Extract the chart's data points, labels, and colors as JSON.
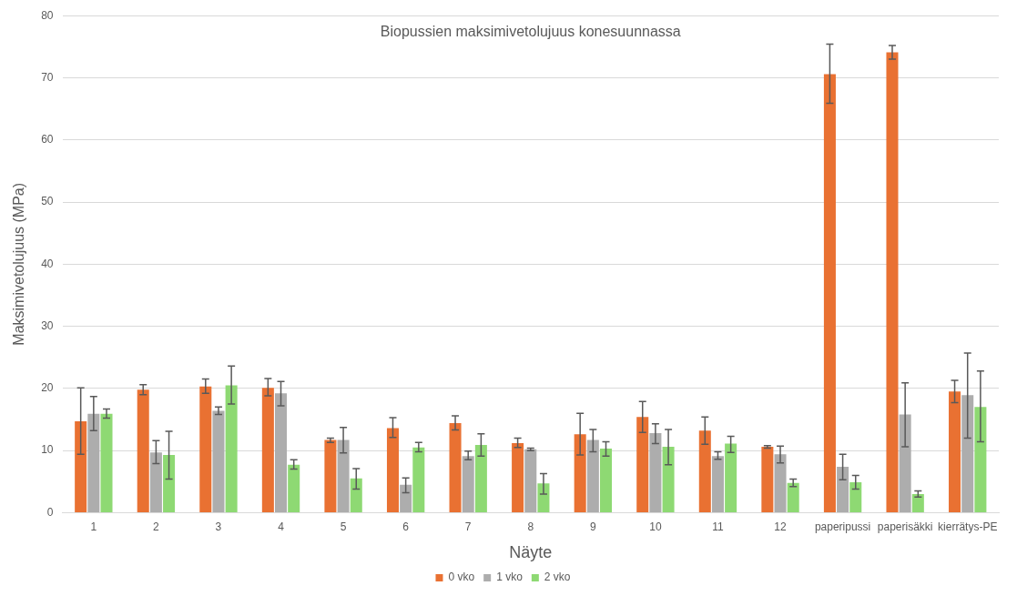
{
  "chart_data": {
    "type": "bar",
    "title": "Biopussien maksimivetolujuus konesuunnassa",
    "xlabel": "Näyte",
    "ylabel": "Maksimivetolujuus (MPa)",
    "categories": [
      "1",
      "2",
      "3",
      "4",
      "5",
      "6",
      "7",
      "8",
      "9",
      "10",
      "11",
      "12",
      "paperipussi",
      "paperisäkki",
      "kierrätys-PE"
    ],
    "series": [
      {
        "name": "0 vko",
        "color": "#e97132",
        "values": [
          14.7,
          19.8,
          20.3,
          20.1,
          11.7,
          13.6,
          14.4,
          11.2,
          12.6,
          15.4,
          13.2,
          10.6,
          70.6,
          74.1,
          19.5
        ],
        "errors": [
          [
            9.4,
            20.1
          ],
          [
            19.0,
            20.6
          ],
          [
            19.2,
            21.5
          ],
          [
            18.8,
            21.6
          ],
          [
            11.3,
            12.0
          ],
          [
            12.1,
            15.3
          ],
          [
            13.3,
            15.6
          ],
          [
            10.5,
            12.0
          ],
          [
            9.3,
            16.0
          ],
          [
            12.9,
            17.9
          ],
          [
            11.0,
            15.4
          ],
          [
            10.4,
            10.8
          ],
          [
            65.9,
            75.4
          ],
          [
            73.0,
            75.2
          ],
          [
            17.7,
            21.3
          ]
        ]
      },
      {
        "name": "1 vko",
        "color": "#adadad",
        "values": [
          15.9,
          9.7,
          16.4,
          19.2,
          11.7,
          4.5,
          9.1,
          10.2,
          11.7,
          12.8,
          9.1,
          9.4,
          7.4,
          15.8,
          18.9
        ],
        "errors": [
          [
            13.2,
            18.7
          ],
          [
            7.9,
            11.6
          ],
          [
            15.8,
            17.0
          ],
          [
            17.2,
            21.1
          ],
          [
            9.6,
            13.7
          ],
          [
            3.2,
            5.6
          ],
          [
            8.5,
            9.9
          ],
          [
            10.0,
            10.4
          ],
          [
            9.8,
            13.4
          ],
          [
            11.1,
            14.3
          ],
          [
            8.6,
            9.8
          ],
          [
            8.0,
            10.7
          ],
          [
            5.3,
            9.4
          ],
          [
            10.6,
            20.9
          ],
          [
            12.0,
            25.7
          ]
        ]
      },
      {
        "name": "2 vko",
        "color": "#8ed973",
        "values": [
          15.9,
          9.3,
          20.5,
          7.7,
          5.5,
          10.5,
          10.9,
          4.7,
          10.3,
          10.6,
          11.1,
          4.8,
          4.9,
          3.0,
          17.0
        ],
        "errors": [
          [
            15.2,
            16.7
          ],
          [
            5.4,
            13.1
          ],
          [
            17.5,
            23.6
          ],
          [
            7.0,
            8.5
          ],
          [
            3.8,
            7.1
          ],
          [
            9.8,
            11.3
          ],
          [
            9.1,
            12.7
          ],
          [
            3.0,
            6.3
          ],
          [
            9.1,
            11.4
          ],
          [
            7.7,
            13.4
          ],
          [
            9.7,
            12.3
          ],
          [
            4.2,
            5.4
          ],
          [
            3.8,
            6.0
          ],
          [
            2.5,
            3.5
          ],
          [
            11.4,
            22.8
          ]
        ]
      }
    ],
    "ylim": [
      0,
      80
    ],
    "yticks": [
      0,
      10,
      20,
      30,
      40,
      50,
      60,
      70,
      80
    ],
    "grid": "y",
    "legend": "bottom"
  }
}
